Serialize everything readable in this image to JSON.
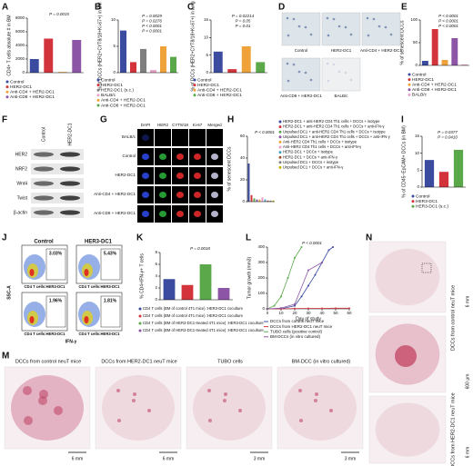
{
  "chart_data": [
    {
      "panel": "A",
      "type": "bar",
      "y_label": "CD4+ T cells absolute # in BM",
      "categories": [
        "Control",
        "HER2-DC1",
        "Anti-CD4 + HER2-DC1",
        "Anti-CD8 + HER2-DC1"
      ],
      "values": [
        2000,
        5000,
        100,
        4800
      ],
      "colors": [
        "#3b4ba0",
        "#d3343c",
        "#f0a23a",
        "#8d55a5"
      ],
      "ylim": [
        0,
        8000
      ],
      "yticks": [
        0,
        2000,
        4000,
        6000,
        8000
      ],
      "annotations": [
        "P = 0.0015"
      ]
    },
    {
      "panel": "B",
      "type": "bar",
      "y_label": "% of DCCs (HER2+CYT8/18+Ki-67+) in BM",
      "categories": [
        "Control",
        "HER2-DC1",
        "HER2-DC1 (s.c.)",
        "BALB/c",
        "Anti-CD4 + HER2-DC1",
        "Anti-CD8 + HER2-DC1"
      ],
      "values": [
        8,
        2,
        4.5,
        0.5,
        5,
        3
      ],
      "colors": [
        "#3b4ba0",
        "#d3343c",
        "#7f7f7f",
        "#e9a0c8",
        "#f0a23a",
        "#5aa84a"
      ],
      "ylim": [
        0,
        10
      ],
      "yticks": [
        0,
        5,
        10
      ],
      "annotations": [
        "P = 0.0029",
        "P = 0.0276",
        "P < 0.0001",
        "P < 0.0001"
      ]
    },
    {
      "panel": "C",
      "type": "bar",
      "y_label": "% of DCCs (HER2+CYT8/18+Ki-67+) in lung",
      "categories": [
        "Control",
        "HER2-DC1",
        "Anti-CD4 + HER2-DC1",
        "Anti-CD8 + HER2-DC1"
      ],
      "values": [
        6,
        1,
        7.5,
        3
      ],
      "colors": [
        "#3b4ba0",
        "#d3343c",
        "#f0a23a",
        "#5aa84a"
      ],
      "ylim": [
        0,
        15
      ],
      "yticks": [
        0,
        5,
        10,
        15
      ],
      "annotations": [
        "P = 0.02214",
        "P = 0.05",
        "P = 0.01"
      ]
    },
    {
      "panel": "E",
      "type": "bar",
      "y_label": "% of senescent DCCs",
      "categories": [
        "Control",
        "HER2-DC1",
        "Anti-CD4 + HER2-DC1",
        "Anti-CD8 + HER2-DC1",
        "BALB/c"
      ],
      "values": [
        10,
        80,
        12,
        60,
        2
      ],
      "colors": [
        "#3b4ba0",
        "#d3343c",
        "#f0a23a",
        "#8d55a5",
        "#e9a0c8"
      ],
      "ylim": [
        0,
        100
      ],
      "yticks": [
        0,
        50,
        100
      ],
      "annotations": [
        "P < 0.0001",
        "P < 0.0001",
        "P < 0.0001"
      ]
    },
    {
      "panel": "H",
      "type": "bar",
      "y_label": "% of senescent DCCs",
      "categories": [
        "HER2-DC1 + anti-HER2 CD4 Th1 cells + DCCs + isotype",
        "HER2-DC1 + anti-HER2 CD4 Th1 cells + DCCs + anti-IFN-γ",
        "Unpulsed DC1 + anti-HER2 CD4 Th1 cells + DCCs + isotype",
        "Unpulsed DC1 + anti-HER2 CD4 Th1 cells + DCCs + anti-IFN-γ",
        "Anti-HER2 CD4 Th1 cells + DCCs + isotype",
        "Anti-HER2 CD4 Th1 cells + DCCs + anti-IFN-γ",
        "HER2-DC1 + DCCs + isotype",
        "HER2-DC1 + DCCs + anti-IFN-γ",
        "Unpulsed DC1 + DCCs + isotype",
        "Unpulsed DC1 + DCCs + anti-IFN-γ"
      ],
      "values": [
        35,
        6,
        3,
        2,
        2,
        4,
        2,
        1,
        1,
        1
      ],
      "colors": [
        "#3b4ba0",
        "#d3343c",
        "#5aa84a",
        "#8d55a5",
        "#f0a23a",
        "#e9a0c8",
        "#4aa3c8",
        "#a0522d",
        "#7f7f7f",
        "#c8b400"
      ],
      "ylim": [
        0,
        60
      ],
      "yticks": [
        0,
        20,
        40,
        60
      ],
      "annotations": [
        "P < 0.0001"
      ]
    },
    {
      "panel": "I",
      "type": "bar",
      "y_label": "% of CD45−EpCAM+ DCCs (in BM)",
      "categories": [
        "Control",
        "HER3-DC1",
        "HER3-DC1 (s.c.)"
      ],
      "values": [
        8,
        4.5,
        11
      ],
      "colors": [
        "#3b4ba0",
        "#d3343c",
        "#5aa84a"
      ],
      "ylim": [
        0,
        15
      ],
      "yticks": [
        0,
        5,
        10,
        15
      ],
      "annotations": [
        "P = 0.0377",
        "P = 0.0410"
      ]
    },
    {
      "panel": "K",
      "type": "bar",
      "y_label": "% CD4+IFN-γ+ T cells",
      "categories": [
        "CD4 T cells (BM of control 4T1 mice) :HER3-DC1 coculture",
        "CD4 T cells (BM of control 4T1 mice) :HER2-DC1 coculture",
        "CD4 T cells (BM of HER3-DC1-treated 4T1 mice) :HER3-DC1 coculture",
        "CD4 T cells (BM of HER3-DC1-treated 4T1 mice) :HER2-DC1 coculture"
      ],
      "values": [
        3.5,
        2.5,
        6,
        2
      ],
      "colors": [
        "#3b4ba0",
        "#d3343c",
        "#5aa84a",
        "#8d55a5"
      ],
      "ylim": [
        0,
        8
      ],
      "yticks": [
        0,
        2,
        4,
        6,
        8
      ],
      "annotations": [
        "P = 0.0018"
      ]
    },
    {
      "panel": "L",
      "type": "line",
      "x_label": "Day of study",
      "y_label": "Tumor growth (mm3)",
      "xlim": [
        0,
        60
      ],
      "xticks": [
        0,
        10,
        20,
        30,
        40,
        50,
        60
      ],
      "ylim": [
        0,
        400
      ],
      "yticks": [
        0,
        100,
        200,
        300,
        400
      ],
      "annotations": [
        "P < 0.0001"
      ],
      "series": [
        {
          "name": "DCCs from control neuT mice",
          "color": "#3b4ba0",
          "x": [
            0,
            10,
            20,
            25,
            30,
            35,
            40,
            45,
            48
          ],
          "values": [
            0,
            0,
            20,
            80,
            150,
            220,
            300,
            380,
            400
          ]
        },
        {
          "name": "DCCs from HER2-DC1 neuT mice",
          "color": "#d3343c",
          "x": [
            0,
            10,
            20,
            30,
            40,
            50,
            60
          ],
          "values": [
            0,
            0,
            2,
            3,
            3,
            4,
            4
          ]
        },
        {
          "name": "TUBO cells (positive control)",
          "color": "#5aa84a",
          "x": [
            0,
            5,
            10,
            15,
            20,
            25
          ],
          "values": [
            0,
            20,
            80,
            200,
            330,
            400
          ]
        },
        {
          "name": "BM-DCCs (in vitro cultured)",
          "color": "#8d55a5",
          "x": [
            0,
            10,
            20,
            30,
            40
          ],
          "values": [
            0,
            5,
            30,
            250,
            300
          ]
        }
      ]
    }
  ],
  "figures": {
    "D": {
      "panel": "D",
      "labels": [
        "Control",
        "HER2-DC1",
        "Anti-CD4 + HER2-DC1",
        "Anti-CD8 + HER2-DC1",
        "BALB/c"
      ]
    },
    "F": {
      "panel": "F",
      "columns": [
        "Control",
        "HER2-DC1"
      ],
      "rows": [
        "HER2",
        "NRF2",
        "Wnt4",
        "Twist",
        "β-actin"
      ]
    },
    "G": {
      "panel": "G",
      "columns": [
        "DAPI",
        "HER2",
        "CYT8/18",
        "Ki-67",
        "Merged"
      ],
      "rows": [
        "BALB/c",
        "Control",
        "HER2-DC1",
        "Anti-CD4 + HER2-DC1",
        "Anti-CD8 + HER2-DC1"
      ]
    },
    "J": {
      "panel": "J",
      "titles": [
        "Control",
        "HER3-DC1"
      ],
      "gates": [
        "3.03%",
        "5.43%",
        "1.96%",
        "1.81%"
      ],
      "x_labels": [
        "CD4 T cells:HER3-DC1",
        "CD4 T cells:HER3-DC1",
        "CD4 T cells:HER3-DC1",
        "CD4 T cells:HER3-DC1"
      ],
      "y_label": "SSC-A",
      "x_axis": "IFN-γ"
    },
    "M": {
      "panel": "M",
      "captions": [
        "DCCs from control neuT mice",
        "DCCs from HER2-DC1 neuT mice",
        "TUBO cells",
        "BM-DCC (in vitro cultured)"
      ],
      "scale_bars": [
        "6 mm",
        "6 mm",
        "3 mm",
        "3 mm"
      ]
    },
    "N": {
      "panel": "N",
      "captions": [
        "DCCs from control neuT mice",
        "DCCs from HER2-DC1 neuT mice"
      ],
      "scale_bars": [
        "6 mm",
        "600 μm",
        "6 mm"
      ]
    }
  }
}
